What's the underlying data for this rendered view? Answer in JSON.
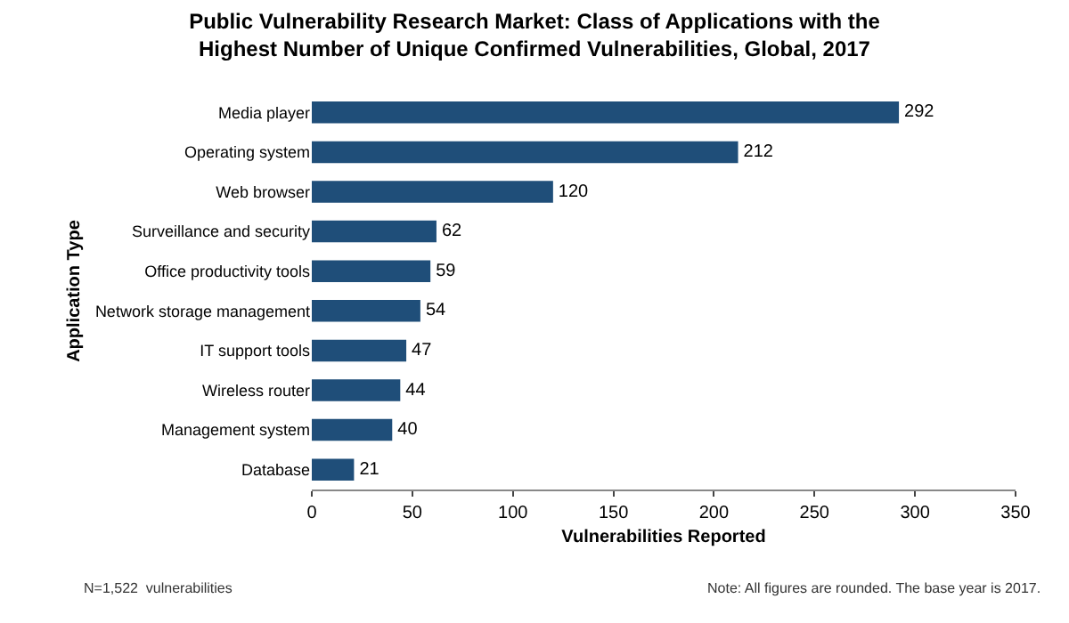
{
  "chart_data": {
    "type": "bar",
    "orientation": "horizontal",
    "title": "Public Vulnerability Research Market: Class of Applications with the Highest Number of Unique Confirmed Vulnerabilities, Global, 2017",
    "categories": [
      "Media player",
      "Operating system",
      "Web browser",
      "Surveillance and security",
      "Office productivity tools",
      "Network storage management",
      "IT support tools",
      "Wireless router",
      "Management system",
      "Database"
    ],
    "values": [
      292,
      212,
      120,
      62,
      59,
      54,
      47,
      44,
      40,
      21
    ],
    "color": "#1f4e79",
    "data_labels": true,
    "xlabel": "Vulnerabilities Reported",
    "ylabel": "Application Type",
    "xlim": [
      0,
      350
    ],
    "xticks": [
      0,
      50,
      100,
      150,
      200,
      250,
      300,
      350
    ],
    "grid": false,
    "annotations": [
      "N=1,522  vulnerabilities",
      "Note: All figures are rounded. The base year is 2017."
    ]
  }
}
